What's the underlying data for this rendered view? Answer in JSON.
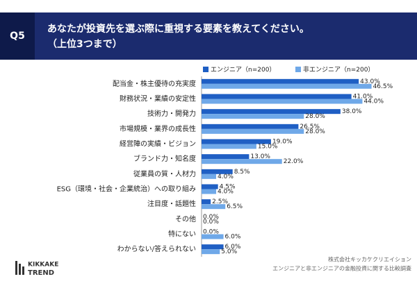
{
  "header": {
    "label": "Q5"
  },
  "chart_data": {
    "type": "hbar",
    "title": "あなたが投資先を選ぶ際に重視する要素を教えてください。",
    "subtitle": "（上位3つまで）",
    "categories": [
      "配当金・株主優待の充実度",
      "財務状況・業績の安定性",
      "技術力・開発力",
      "市場規模・業界の成長性",
      "経営陣の実績・ビジョン",
      "ブランド力・知名度",
      "従業員の質・人材力",
      "ESG（環境・社会・企業統治）への取り組み",
      "注目度・話題性",
      "その他",
      "特にない",
      "わからない/答えられない"
    ],
    "series": [
      {
        "name": "エンジニア（n=200）",
        "color": "#1f5fc4",
        "values": [
          43.0,
          41.0,
          38.0,
          26.5,
          19.0,
          13.0,
          8.5,
          4.5,
          2.5,
          0.0,
          0.0,
          6.0
        ],
        "value_labels": [
          "43.0%",
          "41.0%",
          "38.0%",
          "26.5%",
          "19.0%",
          "13.0%",
          "8.5%",
          "4.5%",
          "2.5%",
          "0.0%",
          "0.0%",
          "6.0%"
        ]
      },
      {
        "name": "非エンジニア（n=200）",
        "color": "#6fa8e8",
        "values": [
          46.5,
          44.0,
          28.0,
          28.0,
          15.0,
          22.0,
          4.0,
          4.0,
          6.5,
          0.0,
          6.0,
          5.0
        ],
        "value_labels": [
          "46.5%",
          "44.0%",
          "28.0%",
          "28.0%",
          "15.0%",
          "22.0%",
          "4.0%",
          "4.0%",
          "6.5%",
          "0.0%",
          "6.0%",
          "5.0%"
        ]
      }
    ],
    "xlim": [
      0,
      50
    ],
    "legend": "top-right"
  },
  "footer": {
    "source": [
      "株式会社キッカケクリエイション",
      "エンジニアと非エンジニアの金融投資に関する比較調査"
    ],
    "logo": [
      "KIKKAKE",
      "TREND"
    ]
  }
}
